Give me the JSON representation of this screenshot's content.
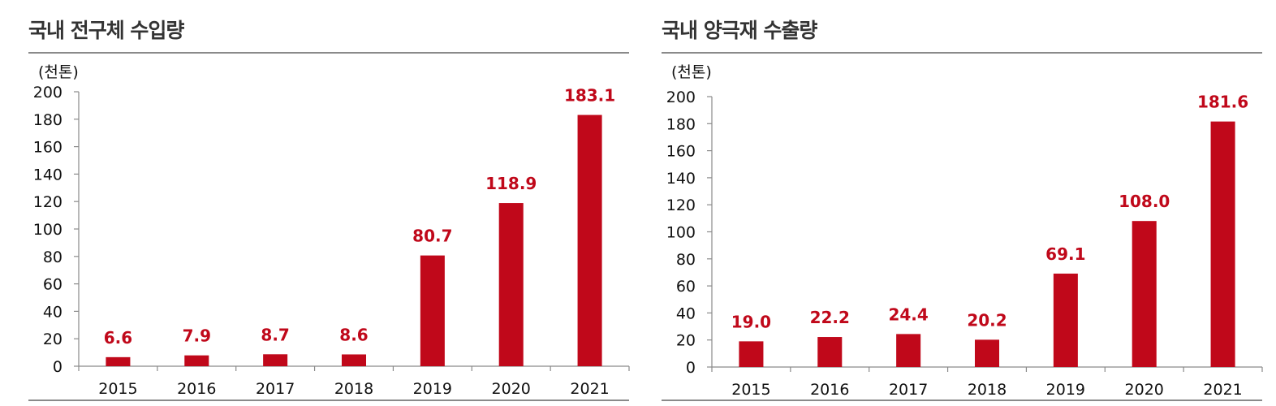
{
  "colors": {
    "bar": "#c0081a",
    "label": "#c0081a",
    "axis": "#8a8a8a"
  },
  "chart_data": [
    {
      "type": "bar",
      "title": "국내 전구체 수입량",
      "unit": "(천톤)",
      "categories": [
        "2015",
        "2016",
        "2017",
        "2018",
        "2019",
        "2020",
        "2021"
      ],
      "values": [
        6.6,
        7.9,
        8.7,
        8.6,
        80.7,
        118.9,
        183.1
      ],
      "value_labels": [
        "6.6",
        "7.9",
        "8.7",
        "8.6",
        "80.7",
        "118.9",
        "183.1"
      ],
      "yticks": [
        "0",
        "20",
        "40",
        "60",
        "80",
        "100",
        "120",
        "140",
        "160",
        "180",
        "200"
      ],
      "ylim": [
        0,
        200
      ],
      "grid": false,
      "legend": "none"
    },
    {
      "type": "bar",
      "title": "국내 양극재 수출량",
      "unit": "(천톤)",
      "categories": [
        "2015",
        "2016",
        "2017",
        "2018",
        "2019",
        "2020",
        "2021"
      ],
      "values": [
        19.0,
        22.2,
        24.4,
        20.2,
        69.1,
        108.0,
        181.6
      ],
      "value_labels": [
        "19.0",
        "22.2",
        "24.4",
        "20.2",
        "69.1",
        "108.0",
        "181.6"
      ],
      "yticks": [
        "0",
        "20",
        "40",
        "60",
        "80",
        "100",
        "120",
        "140",
        "160",
        "180",
        "200"
      ],
      "ylim": [
        0,
        200
      ],
      "grid": false,
      "legend": "none"
    }
  ]
}
